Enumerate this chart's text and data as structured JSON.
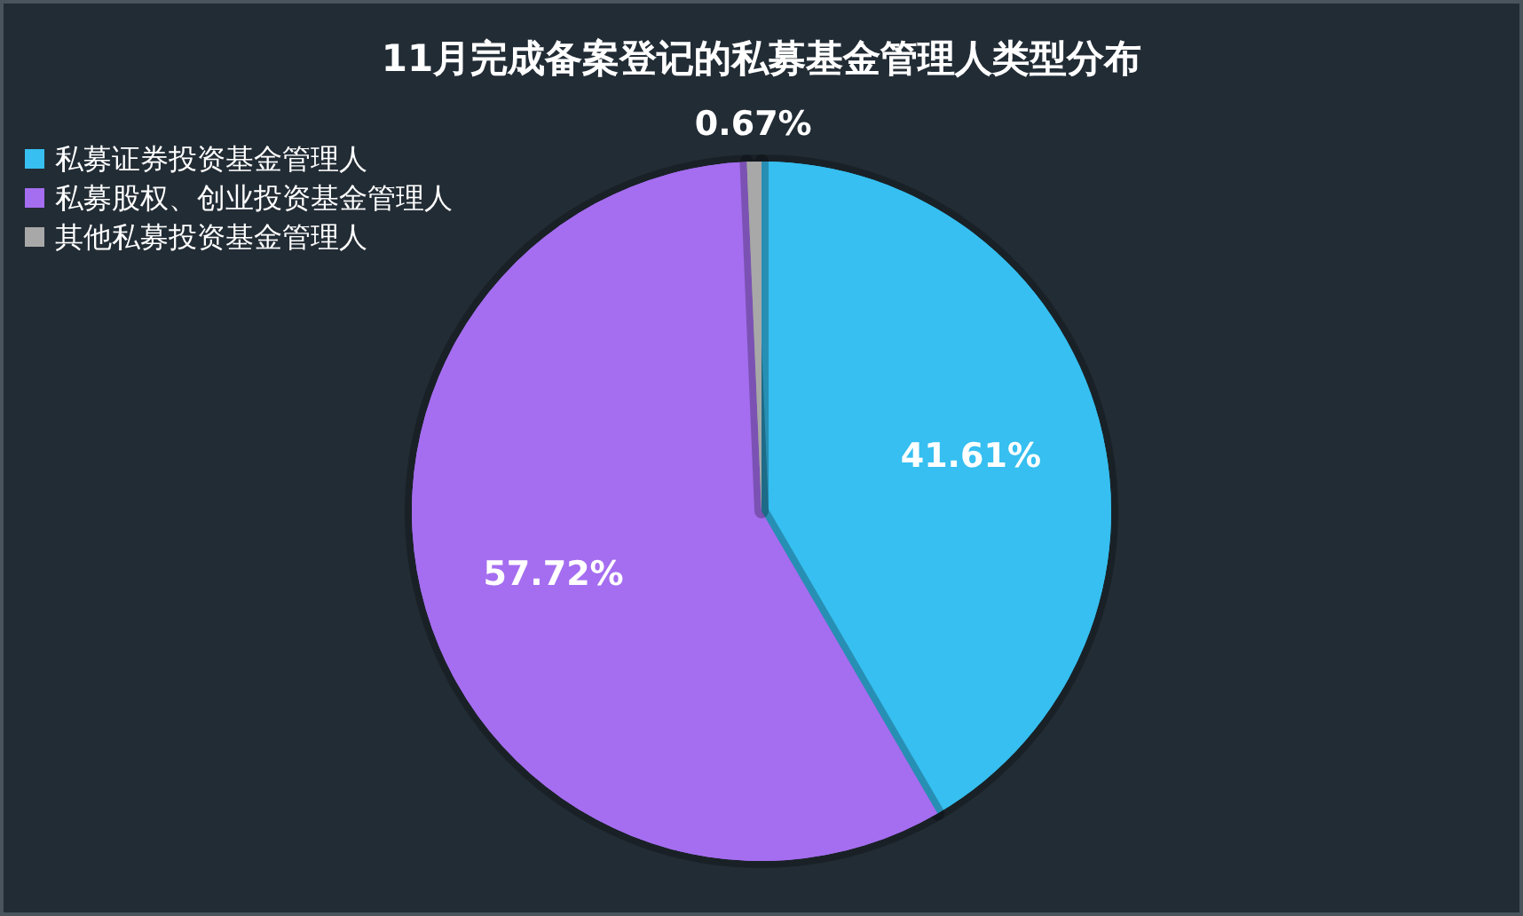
{
  "chart_data": {
    "type": "pie",
    "title": "11月完成备案登记的私募基金管理人类型分布",
    "categories": [
      "私募证券投资基金管理人",
      "私募股权、创业投资基金管理人",
      "其他私募投资基金管理人"
    ],
    "values": [
      41.61,
      57.72,
      0.67
    ],
    "colors": [
      "#36bff0",
      "#a56ef0",
      "#a8a8a8"
    ],
    "value_labels": [
      "41.61%",
      "57.72%",
      "0.67%"
    ],
    "legend": "top left"
  }
}
